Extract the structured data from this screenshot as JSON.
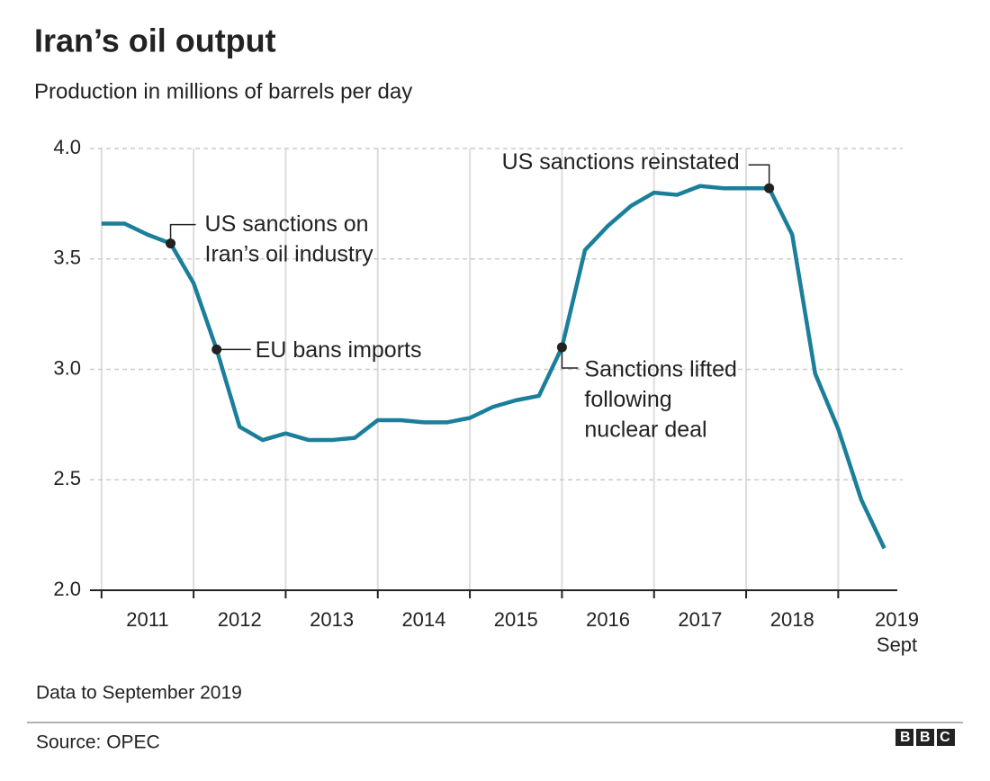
{
  "chart_data": {
    "type": "line",
    "title": "Iran’s oil output",
    "subtitle": "Production in millions of barrels per day",
    "x": [
      2011,
      2011.25,
      2011.5,
      2011.75,
      2012,
      2012.25,
      2012.5,
      2012.75,
      2013,
      2013.25,
      2013.5,
      2013.75,
      2014,
      2014.25,
      2014.5,
      2014.75,
      2015,
      2015.25,
      2015.5,
      2015.75,
      2016,
      2016.25,
      2016.5,
      2016.75,
      2017,
      2017.25,
      2017.5,
      2017.75,
      2018,
      2018.25,
      2018.5,
      2018.75,
      2019,
      2019.25,
      2019.5
    ],
    "series": [
      {
        "name": "Oil output",
        "color": "#1b7f9b",
        "values": [
          3.66,
          3.66,
          3.61,
          3.57,
          3.39,
          3.09,
          2.74,
          2.68,
          2.71,
          2.68,
          2.68,
          2.69,
          2.77,
          2.77,
          2.76,
          2.76,
          2.78,
          2.83,
          2.86,
          2.88,
          3.1,
          3.54,
          3.65,
          3.74,
          3.8,
          3.79,
          3.83,
          3.82,
          3.82,
          3.82,
          3.61,
          2.98,
          2.73,
          2.41,
          2.19
        ]
      }
    ],
    "xlim": [
      2010.875,
      2019.7
    ],
    "xticks": [
      2011,
      2012,
      2013,
      2014,
      2015,
      2016,
      2017,
      2018,
      2019
    ],
    "xlabels": [
      {
        "value": 2011.5,
        "label": "2011"
      },
      {
        "value": 2012.5,
        "label": "2012"
      },
      {
        "value": 2013.5,
        "label": "2013"
      },
      {
        "value": 2014.5,
        "label": "2014"
      },
      {
        "value": 2015.5,
        "label": "2015"
      },
      {
        "value": 2016.5,
        "label": "2016"
      },
      {
        "value": 2017.5,
        "label": "2017"
      },
      {
        "value": 2018.5,
        "label": "2018"
      },
      {
        "value": 2019.5,
        "label": "2019"
      }
    ],
    "x_note": "Sept",
    "ylim": [
      2.0,
      4.0
    ],
    "yticks": [
      {
        "value": 2.0,
        "label": "2.0"
      },
      {
        "value": 2.5,
        "label": "2.5"
      },
      {
        "value": 3.0,
        "label": "3.0"
      },
      {
        "value": 3.5,
        "label": "3.5"
      },
      {
        "value": 4.0,
        "label": "4.0"
      }
    ],
    "grid": true,
    "annotations": [
      {
        "x": 2011.75,
        "lines": [
          "US sanctions on",
          "Iran’s oil industry"
        ]
      },
      {
        "x": 2012.25,
        "lines": [
          "EU bans imports"
        ]
      },
      {
        "x": 2016,
        "lines": [
          "Sanctions lifted",
          "following",
          "nuclear deal"
        ]
      },
      {
        "x": 2018.25,
        "lines": [
          "US sanctions reinstated"
        ]
      }
    ],
    "note": "Data to September 2019",
    "source": "Source: OPEC",
    "logo": "BBC"
  }
}
